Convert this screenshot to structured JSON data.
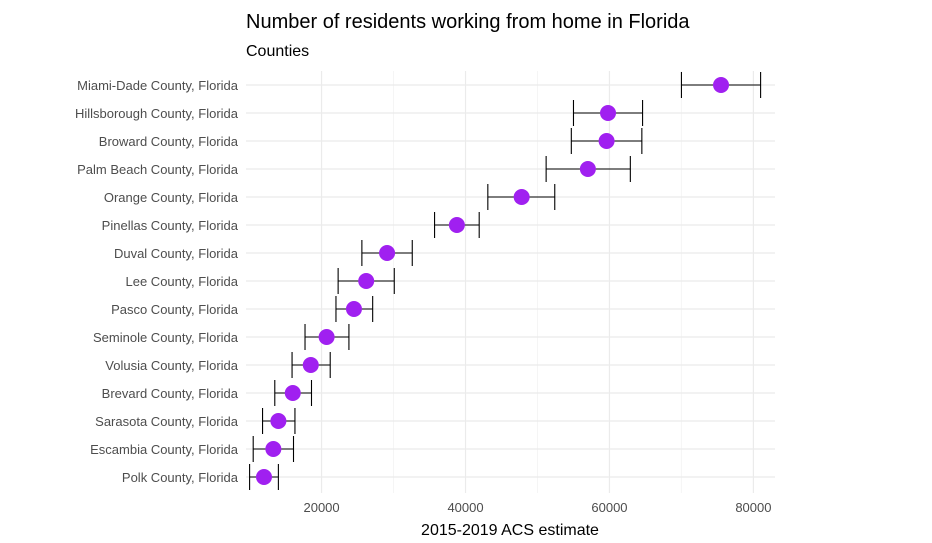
{
  "chart_data": {
    "type": "scatter",
    "subtype": "dot plot with error bars",
    "title": "Number of residents working from home in Florida",
    "subtitle": "Counties",
    "xlabel": "2015-2019 ACS estimate",
    "ylabel": "",
    "xlim": [
      9500,
      83000
    ],
    "x_ticks": [
      20000,
      40000,
      60000,
      80000
    ],
    "grid": true,
    "colors": {
      "point": "#a020f0",
      "errorbar": "#000000",
      "grid_major": "#ebebeb",
      "grid_minor": "#f5f5f5"
    },
    "categories": [
      "Miami-Dade County, Florida",
      "Hillsborough County, Florida",
      "Broward County, Florida",
      "Palm Beach County, Florida",
      "Orange County, Florida",
      "Pinellas County, Florida",
      "Duval County, Florida",
      "Lee County, Florida",
      "Pasco County, Florida",
      "Seminole County, Florida",
      "Volusia County, Florida",
      "Brevard County, Florida",
      "Sarasota County, Florida",
      "Escambia County, Florida",
      "Polk County, Florida"
    ],
    "series": [
      {
        "estimate": [
          75500,
          59800,
          59600,
          57000,
          47800,
          38800,
          29100,
          26200,
          24500,
          20700,
          18500,
          16000,
          14000,
          13300,
          12000
        ],
        "lower": [
          70000,
          55000,
          54700,
          51200,
          43100,
          35700,
          25600,
          22300,
          22000,
          17700,
          15900,
          13500,
          11800,
          10500,
          10000
        ],
        "upper": [
          81000,
          64600,
          64500,
          62900,
          52400,
          41900,
          32600,
          30100,
          27100,
          23800,
          21200,
          18600,
          16300,
          16100,
          14000
        ]
      }
    ]
  }
}
